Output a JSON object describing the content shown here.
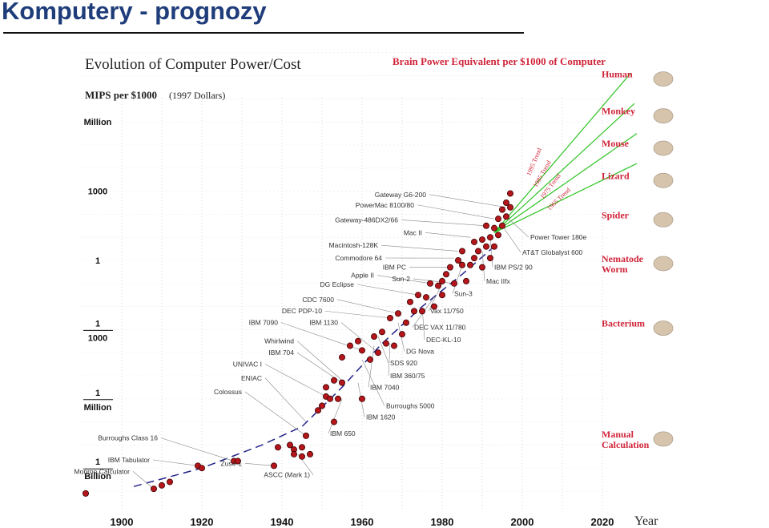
{
  "slide": {
    "title": "Komputery - prognozy"
  },
  "chart_data": {
    "type": "scatter",
    "title": "Evolution of Computer Power/Cost",
    "ylabel": "MIPS per $1000",
    "ylabel_note": "(1997 Dollars)",
    "xlabel": "Year",
    "x_ticks": [
      1900,
      1920,
      1940,
      1960,
      1980,
      2000,
      2020
    ],
    "xlim": [
      1890,
      2030
    ],
    "ylim_log10": [
      -10.5,
      10.5
    ],
    "y_ticks": [
      {
        "log10": 6,
        "num": "Million",
        "den": ""
      },
      {
        "log10": 3,
        "num": "1000",
        "den": ""
      },
      {
        "log10": 0,
        "num": "1",
        "den": ""
      },
      {
        "log10": -3,
        "num": "1",
        "den": "1000"
      },
      {
        "log10": -6,
        "num": "1",
        "den": "Million"
      },
      {
        "log10": -9,
        "num": "1",
        "den": "Billion"
      }
    ],
    "brain_title": "Brain Power Equivalent per $1000 of Computer",
    "brain_levels": [
      {
        "label": "Human",
        "log10": 8.0
      },
      {
        "label": "Monkey",
        "log10": 6.4
      },
      {
        "label": "Mouse",
        "log10": 5.0
      },
      {
        "label": "Lizard",
        "log10": 3.6
      },
      {
        "label": "Spider",
        "log10": 1.9
      },
      {
        "label": "Nematode\nWorm",
        "log10": 0.0
      },
      {
        "label": "Bacterium",
        "log10": -2.8
      },
      {
        "label": "Manual\nCalculation",
        "log10": -7.6
      }
    ],
    "trends": [
      {
        "label": "1995 Trend",
        "from": [
          1993,
          1.2
        ],
        "to": [
          2027,
          8.1
        ]
      },
      {
        "label": "1985 Trend",
        "from": [
          1993,
          1.2
        ],
        "to": [
          2028,
          6.8
        ]
      },
      {
        "label": "1975 Trend",
        "from": [
          1993,
          1.2
        ],
        "to": [
          2029,
          5.5
        ]
      },
      {
        "label": "1965 Trend",
        "from": [
          1993,
          1.2
        ],
        "to": [
          2030,
          4.2
        ]
      }
    ],
    "historical_fit": {
      "label": "dashed trend",
      "points": [
        [
          1903,
          -9.8
        ],
        [
          1920,
          -9.0
        ],
        [
          1935,
          -8.0
        ],
        [
          1945,
          -7.2
        ],
        [
          1955,
          -5.5
        ],
        [
          1965,
          -3.6
        ],
        [
          1975,
          -2.0
        ],
        [
          1985,
          -0.6
        ],
        [
          1993,
          0.6
        ]
      ]
    },
    "points": [
      [
        1891,
        -10.1
      ],
      [
        1908,
        -9.9
      ],
      [
        1910,
        -9.75
      ],
      [
        1912,
        -9.6
      ],
      [
        1919,
        -8.9
      ],
      [
        1920,
        -9.0
      ],
      [
        1928,
        -8.7
      ],
      [
        1929,
        -8.7
      ],
      [
        1938,
        -8.9
      ],
      [
        1939,
        -8.1
      ],
      [
        1942,
        -8.0
      ],
      [
        1943,
        -8.2
      ],
      [
        1943,
        -8.4
      ],
      [
        1945,
        -8.1
      ],
      [
        1945,
        -8.5
      ],
      [
        1946,
        -7.6
      ],
      [
        1947,
        -8.4
      ],
      [
        1949,
        -6.5
      ],
      [
        1950,
        -6.3
      ],
      [
        1951,
        -5.9
      ],
      [
        1951,
        -5.5
      ],
      [
        1953,
        -5.2
      ],
      [
        1952,
        -6.0
      ],
      [
        1953,
        -7.0
      ],
      [
        1954,
        -6.0
      ],
      [
        1955,
        -5.3
      ],
      [
        1955,
        -4.2
      ],
      [
        1957,
        -3.7
      ],
      [
        1959,
        -3.5
      ],
      [
        1960,
        -3.9
      ],
      [
        1960,
        -6.0
      ],
      [
        1962,
        -4.3
      ],
      [
        1963,
        -3.3
      ],
      [
        1964,
        -4.0
      ],
      [
        1965,
        -3.1
      ],
      [
        1966,
        -3.6
      ],
      [
        1967,
        -2.5
      ],
      [
        1968,
        -3.7
      ],
      [
        1969,
        -2.3
      ],
      [
        1970,
        -3.2
      ],
      [
        1971,
        -2.7
      ],
      [
        1972,
        -1.8
      ],
      [
        1973,
        -2.2
      ],
      [
        1974,
        -1.5
      ],
      [
        1975,
        -2.2
      ],
      [
        1976,
        -1.6
      ],
      [
        1977,
        -1.0
      ],
      [
        1978,
        -2.0
      ],
      [
        1979,
        -1.1
      ],
      [
        1980,
        -0.9
      ],
      [
        1980,
        -1.5
      ],
      [
        1981,
        -0.6
      ],
      [
        1982,
        -0.3
      ],
      [
        1983,
        -1.0
      ],
      [
        1984,
        0.0
      ],
      [
        1985,
        -0.2
      ],
      [
        1985,
        0.4
      ],
      [
        1986,
        -0.9
      ],
      [
        1987,
        -0.2
      ],
      [
        1988,
        0.1
      ],
      [
        1988,
        0.8
      ],
      [
        1989,
        0.4
      ],
      [
        1990,
        -0.3
      ],
      [
        1990,
        0.9
      ],
      [
        1991,
        0.6
      ],
      [
        1991,
        1.5
      ],
      [
        1992,
        1.0
      ],
      [
        1992,
        0.1
      ],
      [
        1993,
        1.4
      ],
      [
        1993,
        0.6
      ],
      [
        1994,
        1.8
      ],
      [
        1994,
        1.1
      ],
      [
        1995,
        2.2
      ],
      [
        1995,
        1.5
      ],
      [
        1996,
        2.5
      ],
      [
        1996,
        1.9
      ],
      [
        1997,
        2.9
      ],
      [
        1997,
        2.3
      ]
    ],
    "annotations": [
      {
        "text": "Monroe Calculator",
        "side": "left",
        "anchor": [
          1908,
          -9.9
        ],
        "label_pos": [
          1902,
          -9.25
        ]
      },
      {
        "text": "IBM Tabulator",
        "side": "left",
        "anchor": [
          1919,
          -8.9
        ],
        "label_pos": [
          1907,
          -8.75
        ]
      },
      {
        "text": "Burroughs Class 16",
        "side": "left",
        "anchor": [
          1928,
          -8.7
        ],
        "label_pos": [
          1909,
          -7.8
        ]
      },
      {
        "text": "Zuse-1",
        "side": "left",
        "anchor": [
          1938,
          -8.9
        ],
        "label_pos": [
          1930,
          -8.9
        ]
      },
      {
        "text": "ASCC (Mark 1)",
        "side": "left",
        "anchor": [
          1944,
          -8.4
        ],
        "label_pos": [
          1947,
          -9.4
        ]
      },
      {
        "text": "Colossus",
        "side": "left",
        "anchor": [
          1946,
          -7.6
        ],
        "label_pos": [
          1930,
          -5.8
        ]
      },
      {
        "text": "ENIAC",
        "side": "left",
        "anchor": [
          1946,
          -7.0
        ],
        "label_pos": [
          1935,
          -5.2
        ]
      },
      {
        "text": "UNIVAC I",
        "side": "left",
        "anchor": [
          1951,
          -5.9
        ],
        "label_pos": [
          1935,
          -4.6
        ]
      },
      {
        "text": "IBM 704",
        "side": "left",
        "anchor": [
          1955,
          -5.3
        ],
        "label_pos": [
          1943,
          -4.1
        ]
      },
      {
        "text": "Whirlwind",
        "side": "left",
        "anchor": [
          1955,
          -5.2
        ],
        "label_pos": [
          1943,
          -3.6
        ]
      },
      {
        "text": "IBM 7090",
        "side": "left",
        "anchor": [
          1960,
          -3.9
        ],
        "label_pos": [
          1939,
          -2.8
        ]
      },
      {
        "text": "IBM 1130",
        "side": "left",
        "anchor": [
          1964,
          -4.0
        ],
        "label_pos": [
          1954,
          -2.8
        ]
      },
      {
        "text": "DEC PDP-10",
        "side": "left",
        "anchor": [
          1967,
          -2.5
        ],
        "label_pos": [
          1950,
          -2.3
        ]
      },
      {
        "text": "CDC 7600",
        "side": "left",
        "anchor": [
          1969,
          -2.3
        ],
        "label_pos": [
          1953,
          -1.8
        ]
      },
      {
        "text": "DG Eclipse",
        "side": "left",
        "anchor": [
          1974,
          -1.5
        ],
        "label_pos": [
          1958,
          -1.15
        ]
      },
      {
        "text": "Apple II",
        "side": "left",
        "anchor": [
          1977,
          -1.0
        ],
        "label_pos": [
          1963,
          -0.75
        ]
      },
      {
        "text": "Sun-2",
        "side": "left",
        "anchor": [
          1983,
          -1.0
        ],
        "label_pos": [
          1972,
          -0.9
        ]
      },
      {
        "text": "IBM PC",
        "side": "left",
        "anchor": [
          1982,
          -0.3
        ],
        "label_pos": [
          1971,
          -0.4
        ]
      },
      {
        "text": "Commodore 64",
        "side": "left",
        "anchor": [
          1983,
          0.1
        ],
        "label_pos": [
          1965,
          0.0
        ]
      },
      {
        "text": "Macintosh-128K",
        "side": "left",
        "anchor": [
          1984,
          0.4
        ],
        "label_pos": [
          1964,
          0.55
        ]
      },
      {
        "text": "Mac II",
        "side": "left",
        "anchor": [
          1987,
          1.0
        ],
        "label_pos": [
          1975,
          1.1
        ]
      },
      {
        "text": "Gateway-486DX2/66",
        "side": "left",
        "anchor": [
          1991,
          1.5
        ],
        "label_pos": [
          1969,
          1.65
        ]
      },
      {
        "text": "PowerMac 8100/80",
        "side": "left",
        "anchor": [
          1993,
          1.8
        ],
        "label_pos": [
          1973,
          2.3
        ]
      },
      {
        "text": "Gateway G6-200",
        "side": "left",
        "anchor": [
          1996,
          2.3
        ],
        "label_pos": [
          1976,
          2.75
        ]
      },
      {
        "text": "Power Tower 180e",
        "side": "right",
        "anchor": [
          1996,
          1.9
        ],
        "label_pos": [
          2002,
          0.9
        ]
      },
      {
        "text": "AT&T Globalyst 600",
        "side": "right",
        "anchor": [
          1995,
          1.5
        ],
        "label_pos": [
          2000,
          0.25
        ]
      },
      {
        "text": "IBM PS/2 90",
        "side": "right",
        "anchor": [
          1992,
          1.0
        ],
        "label_pos": [
          1993,
          -0.4
        ]
      },
      {
        "text": "Mac IIfx",
        "side": "right",
        "anchor": [
          1990,
          0.4
        ],
        "label_pos": [
          1991,
          -1.0
        ]
      },
      {
        "text": "Sun-3",
        "side": "right",
        "anchor": [
          1985,
          -0.2
        ],
        "label_pos": [
          1983,
          -1.55
        ]
      },
      {
        "text": "Vax 11/750",
        "side": "right",
        "anchor": [
          1980,
          -1.0
        ],
        "label_pos": [
          1977,
          -2.3
        ]
      },
      {
        "text": "DEC VAX 11/780",
        "side": "right",
        "anchor": [
          1978,
          -1.6
        ],
        "label_pos": [
          1973,
          -3.0
        ]
      },
      {
        "text": "DEC-KL-10",
        "side": "right",
        "anchor": [
          1975,
          -2.0
        ],
        "label_pos": [
          1976,
          -3.55
        ]
      },
      {
        "text": "DG Nova",
        "side": "right",
        "anchor": [
          1969,
          -2.7
        ],
        "label_pos": [
          1971,
          -4.05
        ]
      },
      {
        "text": "SDS 920",
        "side": "right",
        "anchor": [
          1964,
          -3.3
        ],
        "label_pos": [
          1967,
          -4.55
        ]
      },
      {
        "text": "IBM 360/75",
        "side": "right",
        "anchor": [
          1967,
          -3.6
        ],
        "label_pos": [
          1967,
          -5.1
        ]
      },
      {
        "text": "IBM 7040",
        "side": "right",
        "anchor": [
          1963,
          -3.7
        ],
        "label_pos": [
          1962,
          -5.6
        ]
      },
      {
        "text": "Burroughs 5000",
        "side": "right",
        "anchor": [
          1960,
          -4.3
        ],
        "label_pos": [
          1966,
          -6.4
        ]
      },
      {
        "text": "IBM 1620",
        "side": "right",
        "anchor": [
          1959,
          -5.3
        ],
        "label_pos": [
          1961,
          -6.9
        ]
      },
      {
        "text": "IBM 650",
        "side": "right",
        "anchor": [
          1955,
          -6.0
        ],
        "label_pos": [
          1952,
          -7.6
        ]
      }
    ]
  }
}
